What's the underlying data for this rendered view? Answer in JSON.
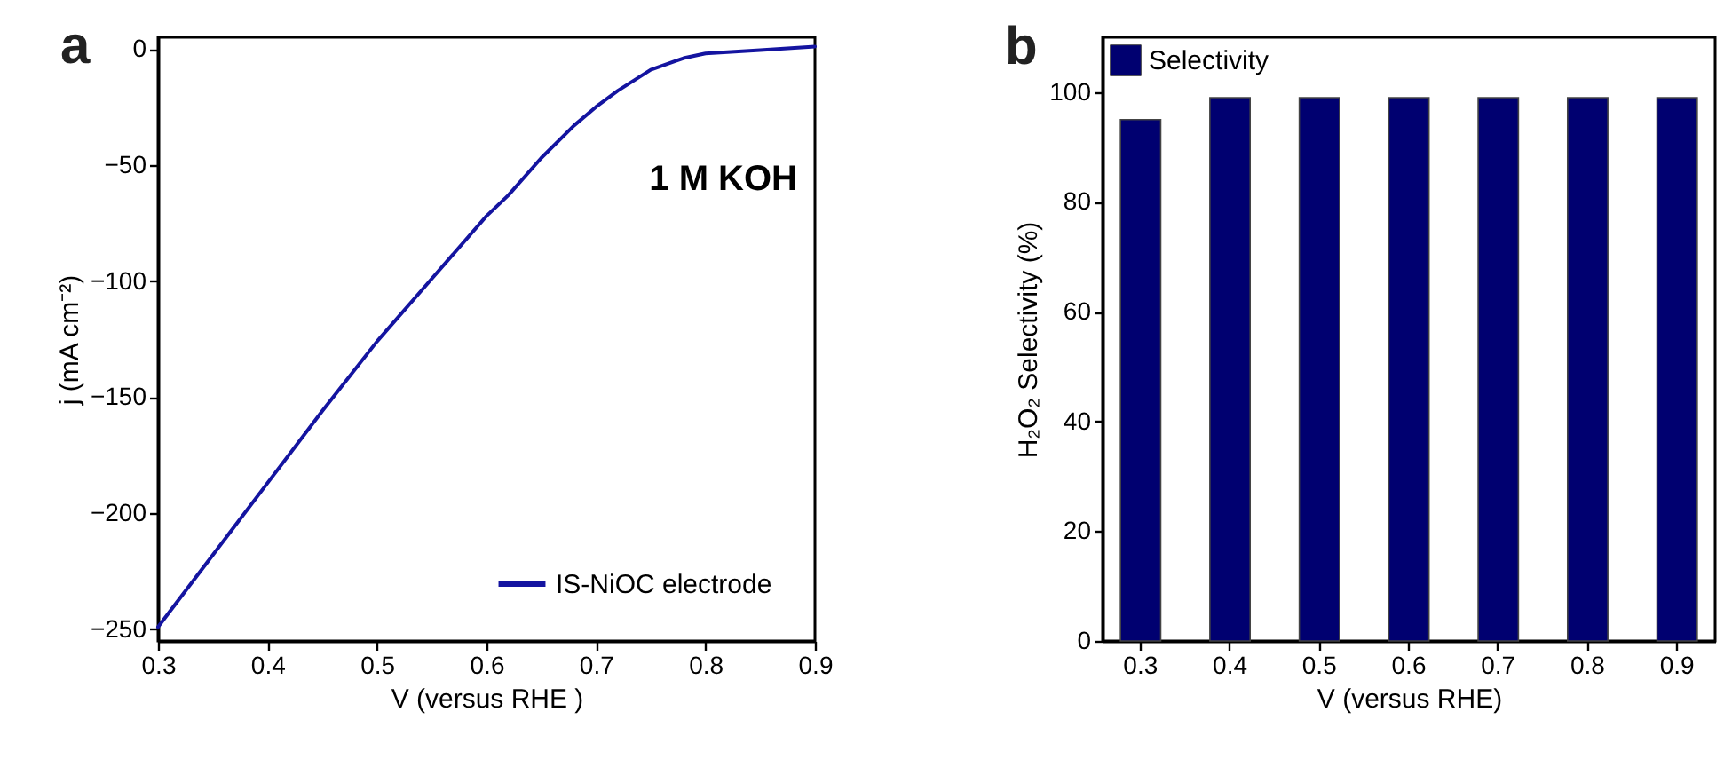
{
  "chart_data": [
    {
      "type": "line",
      "title": "a",
      "xlabel": "V (versus RHE )",
      "ylabel": "j (mA cm⁻²)",
      "annotations": [
        "1 M KOH"
      ],
      "x": [
        0.3,
        0.35,
        0.4,
        0.45,
        0.5,
        0.55,
        0.6,
        0.62,
        0.65,
        0.68,
        0.7,
        0.72,
        0.75,
        0.78,
        0.8,
        0.85,
        0.9
      ],
      "series": [
        {
          "name": "IS-NiOC electrode",
          "color": "#1414a0",
          "values": [
            -249,
            -218,
            -187,
            -156,
            -126,
            -99,
            -72,
            -63,
            -47,
            -33,
            -25,
            -18,
            -9,
            -4,
            -2,
            -0.5,
            1
          ]
        }
      ],
      "xlim": [
        0.3,
        0.9
      ],
      "xticks": [
        0.3,
        0.4,
        0.5,
        0.6,
        0.7,
        0.8,
        0.9
      ],
      "ylim": [
        -255,
        5
      ],
      "yticks": [
        -250,
        -200,
        -150,
        -100,
        -50,
        0
      ],
      "legend": "bottom right"
    },
    {
      "type": "bar",
      "title": "b",
      "xlabel": "V (versus RHE)",
      "ylabel": "H₂O₂ Selectivity (%)",
      "categories": [
        "0.3",
        "0.4",
        "0.5",
        "0.6",
        "0.7",
        "0.8",
        "0.9"
      ],
      "series": [
        {
          "name": "Selectivity",
          "color": "#000070",
          "values": [
            95,
            99,
            99,
            99,
            99,
            99,
            99
          ]
        }
      ],
      "ylim": [
        0,
        110
      ],
      "yticks": [
        0,
        20,
        40,
        60,
        80,
        100
      ],
      "legend": "top left"
    }
  ]
}
